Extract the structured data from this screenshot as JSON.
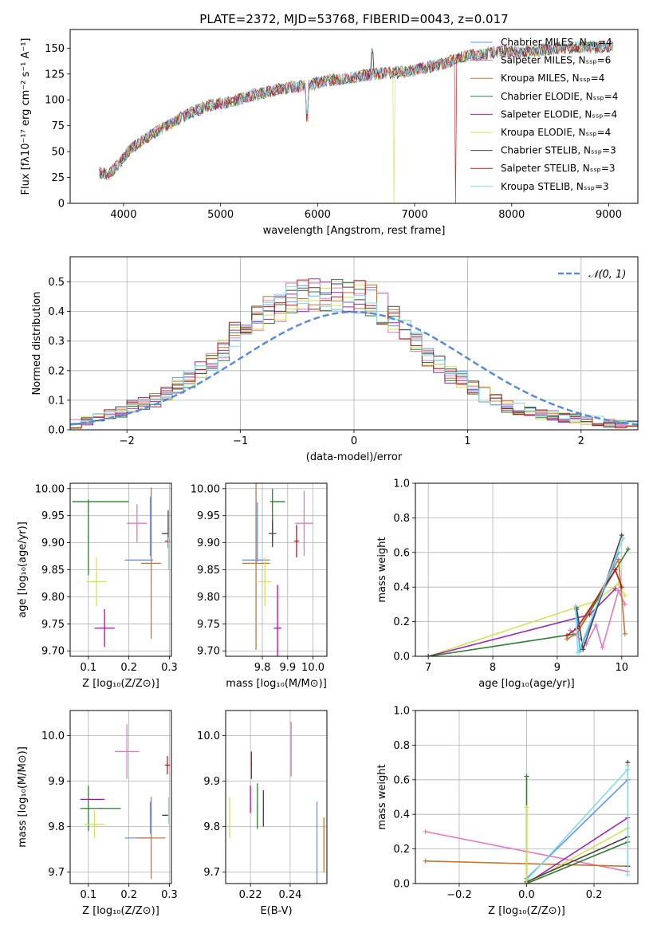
{
  "figure": {
    "title": "PLATE=2372, MJD=53768, FIBERID=0043, z=0.017"
  },
  "chart_data": [
    {
      "id": "spectrum",
      "type": "line",
      "xlabel": "wavelength [Angstrom, rest frame]",
      "ylabel": "Flux [fλ10⁻¹⁷ erg cm⁻² s⁻¹ A⁻¹]",
      "xlim": [
        3450,
        9300
      ],
      "ylim": [
        0,
        168
      ],
      "xticks": [
        4000,
        5000,
        6000,
        7000,
        8000,
        9000
      ],
      "yticks": [
        0,
        25,
        50,
        75,
        100,
        125,
        150
      ],
      "grid": false,
      "legend_position": "top-right",
      "series": [
        {
          "name": "Chabrier MILES, Nₛₛₚ=4",
          "color": "#6495ed"
        },
        {
          "name": "Salpeter MILES, Nₛₛₚ=6",
          "color": "#e377c2"
        },
        {
          "name": "Kroupa MILES, Nₛₛₚ=4",
          "color": "#c87533"
        },
        {
          "name": "Chabrier ELODIE, Nₛₛₚ=4",
          "color": "#2e7d32"
        },
        {
          "name": "Salpeter ELODIE, Nₛₛₚ=4",
          "color": "#9c27b0"
        },
        {
          "name": "Kroupa ELODIE, Nₛₛₚ=4",
          "color": "#d4e157"
        },
        {
          "name": "Chabrier STELIB, Nₛₛₚ=3",
          "color": "#424242"
        },
        {
          "name": "Salpeter STELIB, Nₛₛₚ=3",
          "color": "#b71c1c"
        },
        {
          "name": "Kroupa STELIB, Nₛₛₚ=3",
          "color": "#80deea"
        }
      ],
      "continuum": {
        "x": [
          3750,
          3850,
          3950,
          4050,
          4150,
          4300,
          4500,
          4700,
          4900,
          5100,
          5300,
          5500,
          5700,
          5900,
          6100,
          6300,
          6500,
          6700,
          6900,
          7100,
          7300,
          7500,
          7700,
          7900,
          8100,
          8300,
          8500,
          8700,
          8900,
          9050
        ],
        "y": [
          30,
          28,
          38,
          50,
          58,
          67,
          78,
          88,
          95,
          98,
          104,
          108,
          112,
          114,
          119,
          120,
          124,
          126,
          127,
          131,
          135,
          142,
          144,
          147,
          146,
          148,
          150,
          151,
          151,
          151
        ]
      }
    },
    {
      "id": "residual-histogram",
      "type": "bar",
      "xlabel": "(data-model)/error",
      "ylabel": "Normed distribution",
      "xlim": [
        -2.5,
        2.5
      ],
      "ylim": [
        0,
        0.585
      ],
      "xticks": [
        -2,
        -1,
        0,
        1,
        2
      ],
      "yticks": [
        0.0,
        0.1,
        0.2,
        0.3,
        0.4,
        0.5
      ],
      "grid": true,
      "legend_position": "top-right",
      "reference_curve": {
        "name": "𝒩(0, 1)",
        "mean": 0,
        "sd": 1,
        "color": "#5b8bd8"
      },
      "bin_width": 0.1,
      "base_bins": [
        0.02,
        0.03,
        0.04,
        0.05,
        0.06,
        0.08,
        0.09,
        0.1,
        0.12,
        0.15,
        0.17,
        0.2,
        0.23,
        0.27,
        0.32,
        0.35,
        0.38,
        0.4,
        0.42,
        0.44,
        0.45,
        0.46,
        0.46,
        0.46,
        0.45,
        0.45,
        0.44,
        0.41,
        0.37,
        0.34,
        0.29,
        0.25,
        0.22,
        0.19,
        0.17,
        0.14,
        0.12,
        0.1,
        0.08,
        0.07,
        0.06,
        0.05,
        0.05,
        0.04,
        0.04,
        0.03,
        0.03,
        0.02,
        0.02,
        0.02
      ],
      "series_colors": [
        "#6495ed",
        "#e377c2",
        "#c87533",
        "#2e7d32",
        "#9c27b0",
        "#d4e157",
        "#424242",
        "#b71c1c",
        "#80deea"
      ]
    },
    {
      "id": "age-vs-Z",
      "type": "scatter",
      "xlabel": "Z [log₁₀(Z/Z⊙)]",
      "ylabel": "age  [log₁₀(age/yr)]",
      "xlim": [
        0.055,
        0.305
      ],
      "ylim": [
        9.69,
        10.01
      ],
      "xticks": [
        0.1,
        0.2,
        0.3
      ],
      "yticks": [
        9.7,
        9.75,
        9.8,
        9.85,
        9.9,
        9.95,
        10.0
      ],
      "grid": true,
      "points": [
        {
          "x": 0.13,
          "y": 9.976,
          "xerr": 0.07,
          "yerr": 0.0,
          "color": "#2e7d32"
        },
        {
          "x": 0.1,
          "y": 9.91,
          "xerr": 0.0,
          "yerr": 0.07,
          "color": "#2e7d32"
        },
        {
          "x": 0.12,
          "y": 9.828,
          "xerr": 0.025,
          "yerr": 0.045,
          "color": "#d4e157"
        },
        {
          "x": 0.14,
          "y": 9.742,
          "xerr": 0.025,
          "yerr": 0.035,
          "color": "#c000c0"
        },
        {
          "x": 0.22,
          "y": 9.936,
          "xerr": 0.025,
          "yerr": 0.035,
          "color": "#e377c2"
        },
        {
          "x": 0.225,
          "y": 9.868,
          "xerr": 0.035,
          "yerr": 0.0,
          "color": "#6495ed"
        },
        {
          "x": 0.253,
          "y": 9.93,
          "xerr": 0.0,
          "yerr": 0.055,
          "color": "#6495ed"
        },
        {
          "x": 0.255,
          "y": 9.862,
          "xerr": 0.025,
          "yerr": 0.14,
          "color": "#c87533"
        },
        {
          "x": 0.289,
          "y": 9.917,
          "xerr": 0.008,
          "yerr": 0.0,
          "color": "#424242"
        },
        {
          "x": 0.295,
          "y": 9.903,
          "xerr": 0.006,
          "yerr": 0.0,
          "color": "#b71c1c"
        },
        {
          "x": 0.297,
          "y": 9.925,
          "xerr": 0.0,
          "yerr": 0.035,
          "color": "#424242"
        },
        {
          "x": 0.298,
          "y": 9.88,
          "xerr": 0.0,
          "yerr": 0.03,
          "color": "#80deea"
        }
      ]
    },
    {
      "id": "age-vs-mass",
      "type": "scatter",
      "xlabel": "mass [log₁₀(M/M⊙)]",
      "ylabel": "",
      "xlim": [
        9.655,
        10.055
      ],
      "ylim": [
        9.69,
        10.01
      ],
      "xticks": [
        9.8,
        9.9,
        10.0
      ],
      "yticks": [
        9.7,
        9.75,
        9.8,
        9.85,
        9.9,
        9.95,
        10.0
      ],
      "grid": true,
      "points": [
        {
          "x": 9.86,
          "y": 9.976,
          "xerr": 0.03,
          "yerr": 0.0,
          "color": "#2e7d32"
        },
        {
          "x": 9.84,
          "y": 9.95,
          "xerr": 0.0,
          "yerr": 0.05,
          "color": "#2e7d32"
        },
        {
          "x": 9.775,
          "y": 9.868,
          "xerr": 0.055,
          "yerr": 0.0,
          "color": "#6495ed"
        },
        {
          "x": 9.78,
          "y": 9.92,
          "xerr": 0.0,
          "yerr": 0.055,
          "color": "#6495ed"
        },
        {
          "x": 9.775,
          "y": 9.862,
          "xerr": 0.055,
          "yerr": 0.16,
          "color": "#c87533"
        },
        {
          "x": 9.81,
          "y": 9.828,
          "xerr": 0.025,
          "yerr": 0.045,
          "color": "#d4e157"
        },
        {
          "x": 9.84,
          "y": 9.917,
          "xerr": 0.015,
          "yerr": 0.025,
          "color": "#424242"
        },
        {
          "x": 9.86,
          "y": 9.742,
          "xerr": 0.015,
          "yerr": 0.08,
          "color": "#c000c0"
        },
        {
          "x": 9.935,
          "y": 9.903,
          "xerr": 0.01,
          "yerr": 0.03,
          "color": "#b71c1c"
        },
        {
          "x": 9.965,
          "y": 9.936,
          "xerr": 0.035,
          "yerr": 0.06,
          "color": "#e377c2"
        }
      ]
    },
    {
      "id": "mass-weight-vs-age",
      "type": "line",
      "xlabel": "age  [log₁₀(age/yr)]",
      "ylabel": "mass weight",
      "xlim": [
        6.8,
        10.25
      ],
      "ylim": [
        0.0,
        1.0
      ],
      "xticks": [
        7,
        8,
        9,
        10
      ],
      "yticks": [
        0.0,
        0.2,
        0.4,
        0.6,
        0.8,
        1.0
      ],
      "grid": true,
      "series": [
        {
          "color": "#d4e157",
          "x": [
            7.0,
            9.6,
            9.95,
            10.05
          ],
          "y": [
            0.0,
            0.32,
            0.42,
            0.35
          ]
        },
        {
          "color": "#9c27b0",
          "x": [
            7.0,
            9.5,
            9.9
          ],
          "y": [
            0.0,
            0.24,
            0.39
          ]
        },
        {
          "color": "#2e7d32",
          "x": [
            7.0,
            9.3,
            10.1
          ],
          "y": [
            0.0,
            0.13,
            0.62
          ]
        },
        {
          "color": "#e377c2",
          "x": [
            9.2,
            9.45,
            9.6,
            9.7,
            9.95,
            10.05
          ],
          "y": [
            0.15,
            0.07,
            0.18,
            0.05,
            0.38,
            0.3
          ]
        },
        {
          "color": "#c87533",
          "x": [
            9.15,
            9.3,
            9.95,
            10.05
          ],
          "y": [
            0.1,
            0.13,
            0.56,
            0.13
          ]
        },
        {
          "color": "#6495ed",
          "x": [
            9.3,
            9.35,
            9.95
          ],
          "y": [
            0.27,
            0.03,
            0.6
          ]
        },
        {
          "color": "#424242",
          "x": [
            9.3,
            9.4,
            10.0
          ],
          "y": [
            0.28,
            0.04,
            0.7
          ]
        },
        {
          "color": "#b71c1c",
          "x": [
            9.15,
            9.3,
            9.9,
            10.0
          ],
          "y": [
            0.12,
            0.16,
            0.5,
            0.4
          ]
        },
        {
          "color": "#80deea",
          "x": [
            9.28,
            9.32,
            10.02
          ],
          "y": [
            0.29,
            0.02,
            0.68
          ]
        }
      ]
    },
    {
      "id": "mass-vs-Z",
      "type": "scatter",
      "xlabel": "Z [log₁₀(Z/Z⊙)]",
      "ylabel": "mass [log₁₀(M/M⊙)]",
      "xlim": [
        0.055,
        0.305
      ],
      "ylim": [
        9.675,
        10.055
      ],
      "xticks": [
        0.1,
        0.2,
        0.3
      ],
      "yticks": [
        9.7,
        9.8,
        9.9,
        10.0
      ],
      "grid": true,
      "points": [
        {
          "x": 0.195,
          "y": 9.965,
          "xerr": 0.03,
          "yerr": 0.06,
          "color": "#e377c2"
        },
        {
          "x": 0.295,
          "y": 9.935,
          "xerr": 0.006,
          "yerr": 0.02,
          "color": "#b71c1c"
        },
        {
          "x": 0.1,
          "y": 9.84,
          "xerr": 0.0,
          "yerr": 0.05,
          "color": "#2e7d32"
        },
        {
          "x": 0.13,
          "y": 9.84,
          "xerr": 0.05,
          "yerr": 0.0,
          "color": "#2e7d32"
        },
        {
          "x": 0.11,
          "y": 9.86,
          "xerr": 0.03,
          "yerr": 0.0,
          "color": "#c000c0"
        },
        {
          "x": 0.115,
          "y": 9.805,
          "xerr": 0.025,
          "yerr": 0.03,
          "color": "#d4e157"
        },
        {
          "x": 0.225,
          "y": 9.775,
          "xerr": 0.035,
          "yerr": 0.0,
          "color": "#6495ed"
        },
        {
          "x": 0.253,
          "y": 9.82,
          "xerr": 0.0,
          "yerr": 0.035,
          "color": "#6495ed"
        },
        {
          "x": 0.255,
          "y": 9.775,
          "xerr": 0.035,
          "yerr": 0.09,
          "color": "#c87533"
        },
        {
          "x": 0.29,
          "y": 9.825,
          "xerr": 0.008,
          "yerr": 0.0,
          "color": "#424242"
        },
        {
          "x": 0.298,
          "y": 9.835,
          "xerr": 0.0,
          "yerr": 0.03,
          "color": "#80deea"
        }
      ]
    },
    {
      "id": "mass-vs-ebv",
      "type": "scatter",
      "xlabel": "E(B-V)",
      "ylabel": "",
      "xlim": [
        0.2075,
        0.2585
      ],
      "ylim": [
        9.675,
        10.055
      ],
      "xticks": [
        0.22,
        0.24
      ],
      "yticks": [
        9.7,
        9.8,
        9.9,
        10.0
      ],
      "grid": true,
      "points": [
        {
          "x": 0.2095,
          "y": 9.82,
          "xerr": 0.0,
          "yerr": 0.045,
          "color": "#d4e157"
        },
        {
          "x": 0.2205,
          "y": 9.935,
          "xerr": 0.0,
          "yerr": 0.03,
          "color": "#b71c1c"
        },
        {
          "x": 0.22,
          "y": 9.86,
          "xerr": 0.0,
          "yerr": 0.03,
          "color": "#c000c0"
        },
        {
          "x": 0.2235,
          "y": 9.845,
          "xerr": 0.0,
          "yerr": 0.05,
          "color": "#2e7d32"
        },
        {
          "x": 0.2265,
          "y": 9.84,
          "xerr": 0.0,
          "yerr": 0.04,
          "color": "#424242"
        },
        {
          "x": 0.2405,
          "y": 9.97,
          "xerr": 0.0,
          "yerr": 0.06,
          "color": "#e377c2"
        },
        {
          "x": 0.2535,
          "y": 9.765,
          "xerr": 0.0,
          "yerr": 0.09,
          "color": "#6495ed"
        },
        {
          "x": 0.257,
          "y": 9.76,
          "xerr": 0.0,
          "yerr": 0.06,
          "color": "#c87533"
        }
      ]
    },
    {
      "id": "mass-weight-vs-Z",
      "type": "line",
      "xlabel": "Z [log₁₀(Z/Z⊙)]",
      "ylabel": "mass weight",
      "xlim": [
        -0.33,
        0.33
      ],
      "ylim": [
        0.0,
        1.0
      ],
      "xticks": [
        -0.2,
        0.0,
        0.2
      ],
      "yticks": [
        0.0,
        0.2,
        0.4,
        0.6,
        0.8,
        1.0
      ],
      "grid": true,
      "series": [
        {
          "color": "#e377c2",
          "x": [
            -0.3,
            0.3
          ],
          "y": [
            0.3,
            0.07
          ]
        },
        {
          "color": "#c87533",
          "x": [
            -0.3,
            0.3
          ],
          "y": [
            0.13,
            0.1
          ]
        },
        {
          "color": "#9c27b0",
          "x": [
            0.0,
            0.3
          ],
          "y": [
            0.0,
            0.38
          ]
        },
        {
          "color": "#d4e157",
          "x": [
            0.0,
            0.3
          ],
          "y": [
            0.0,
            0.32
          ]
        },
        {
          "color": "#424242",
          "x": [
            0.0,
            0.3
          ],
          "y": [
            0.01,
            0.27
          ]
        },
        {
          "color": "#2e7d32",
          "x": [
            0.0,
            0.3
          ],
          "y": [
            0.0,
            0.24
          ]
        },
        {
          "color": "#6495ed",
          "x": [
            0.0,
            0.3
          ],
          "y": [
            0.03,
            0.6
          ]
        },
        {
          "color": "#80deea",
          "x": [
            0.0,
            0.3
          ],
          "y": [
            0.02,
            0.66
          ]
        },
        {
          "color": "#2e7d32",
          "x": [
            0.0,
            0.0
          ],
          "y": [
            0.0,
            0.62
          ]
        },
        {
          "color": "#d4e157",
          "x": [
            0.0,
            0.0
          ],
          "y": [
            0.0,
            0.44
          ]
        },
        {
          "color": "#424242",
          "x": [
            0.3,
            0.3
          ],
          "y": [
            0.1,
            0.7
          ]
        },
        {
          "color": "#80deea",
          "x": [
            0.3,
            0.3
          ],
          "y": [
            0.05,
            0.68
          ]
        }
      ]
    }
  ]
}
